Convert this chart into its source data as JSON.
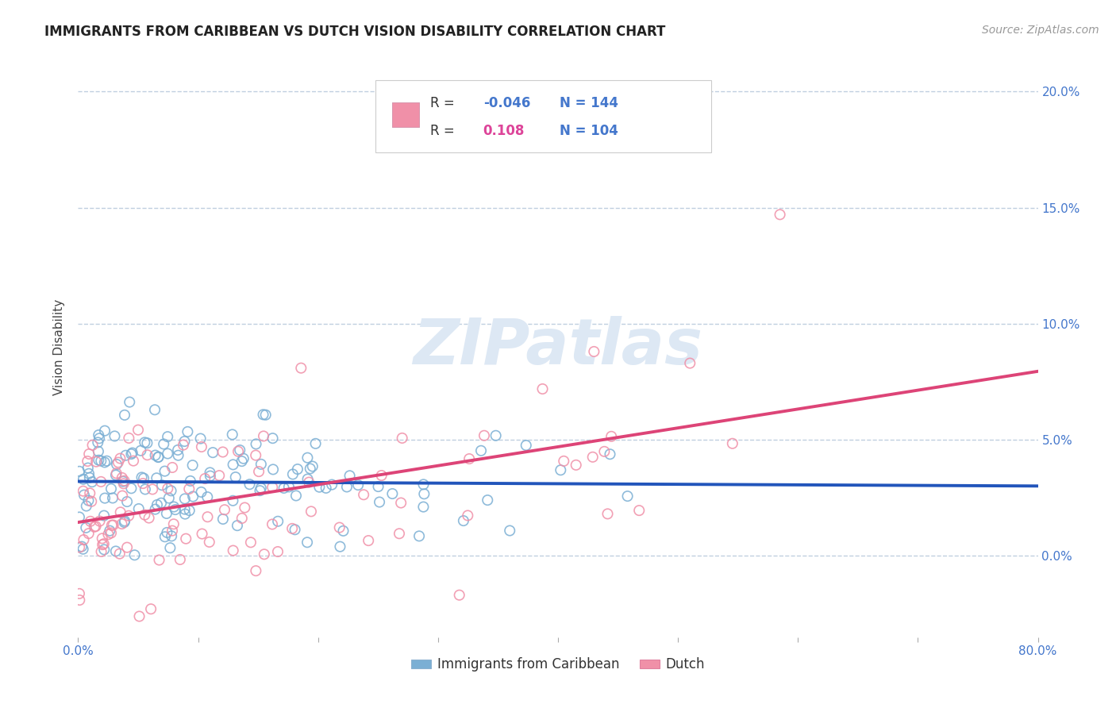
{
  "title": "IMMIGRANTS FROM CARIBBEAN VS DUTCH VISION DISABILITY CORRELATION CHART",
  "source_text": "Source: ZipAtlas.com",
  "ylabel": "Vision Disability",
  "legend_label1": "Immigrants from Caribbean",
  "legend_label2": "Dutch",
  "R1": -0.046,
  "N1": 144,
  "R2": 0.108,
  "N2": 104,
  "color1": "#7bafd4",
  "color2": "#f090a8",
  "line_color1": "#2255bb",
  "line_color2": "#dd4477",
  "text_color_blue": "#4477cc",
  "text_color_pink": "#dd4499",
  "background_color": "#ffffff",
  "grid_color": "#c0cfe0",
  "xlim": [
    0.0,
    0.8
  ],
  "ylim": [
    -0.035,
    0.215
  ],
  "yticks": [
    0.0,
    0.05,
    0.1,
    0.15,
    0.2
  ],
  "ytick_labels": [
    "0.0%",
    "5.0%",
    "10.0%",
    "15.0%",
    "20.0%"
  ],
  "xticks": [
    0.0,
    0.1,
    0.2,
    0.3,
    0.4,
    0.5,
    0.6,
    0.7,
    0.8
  ],
  "xtick_labels": [
    "0.0%",
    "",
    "",
    "",
    "",
    "",
    "",
    "",
    "80.0%"
  ],
  "title_fontsize": 12,
  "axis_label_fontsize": 11,
  "tick_fontsize": 11,
  "legend_fontsize": 12,
  "source_fontsize": 10,
  "watermark_color": "#dde8f4"
}
